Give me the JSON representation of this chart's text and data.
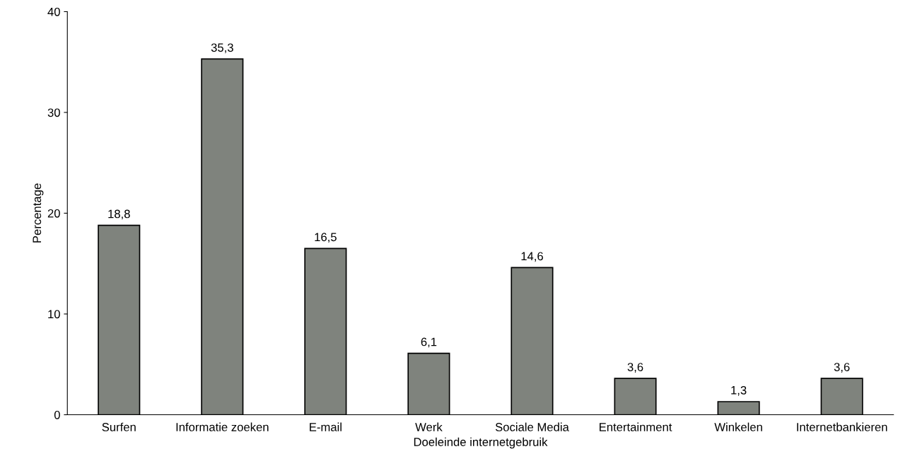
{
  "chart_data": {
    "type": "bar",
    "xlabel": "Doeleinde internetgebruik",
    "ylabel": "Percentage",
    "categories": [
      "Surfen",
      "Informatie zoeken",
      "E-mail",
      "Werk",
      "Sociale Media",
      "Entertainment",
      "Winkelen",
      "Internetbankieren"
    ],
    "values": [
      18.8,
      35.3,
      16.5,
      6.1,
      14.6,
      3.6,
      1.3,
      3.6
    ],
    "value_labels": [
      "18,8",
      "35,3",
      "16,5",
      "6,1",
      "14,6",
      "3,6",
      "1,3",
      "3,6"
    ],
    "color": "#7f837d",
    "ylim": [
      0,
      40
    ],
    "yticks": [
      0,
      10,
      20,
      30,
      40
    ],
    "grid": false,
    "legend": false
  }
}
